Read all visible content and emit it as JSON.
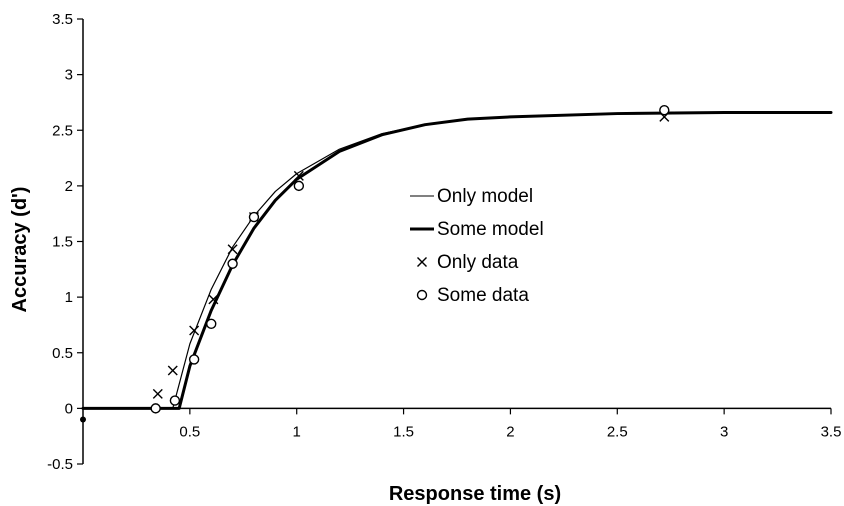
{
  "chart_data": {
    "type": "line",
    "title": "",
    "xlabel": "Response time (s)",
    "ylabel": "Accuracy (d')",
    "xlim": [
      0,
      3.5
    ],
    "ylim": [
      -0.5,
      3.5
    ],
    "x_ticks": [
      0.5,
      1,
      1.5,
      2,
      2.5,
      3,
      3.5
    ],
    "x_tick_labels": [
      "0.5",
      "1",
      "1.5",
      "2",
      "2.5",
      "3",
      "3.5"
    ],
    "y_ticks": [
      -0.5,
      0,
      0.5,
      1,
      1.5,
      2,
      2.5,
      3,
      3.5
    ],
    "y_tick_labels": [
      "-0.5",
      "0",
      "0.5",
      "1",
      "1.5",
      "2",
      "2.5",
      "3",
      "3.5"
    ],
    "grid": false,
    "legend_position": "center-right",
    "series": [
      {
        "name": "Only model",
        "kind": "line",
        "style": "thin",
        "x": [
          0,
          0.42,
          0.5,
          0.6,
          0.7,
          0.8,
          0.9,
          1.0,
          1.2,
          1.4,
          1.6,
          1.8,
          2.0,
          2.5,
          3.0,
          3.5
        ],
        "y": [
          0,
          0,
          0.58,
          1.07,
          1.45,
          1.73,
          1.95,
          2.11,
          2.33,
          2.47,
          2.55,
          2.6,
          2.62,
          2.65,
          2.66,
          2.66
        ]
      },
      {
        "name": "Some model",
        "kind": "line",
        "style": "thick",
        "x": [
          0,
          0.45,
          0.5,
          0.6,
          0.7,
          0.8,
          0.9,
          1.0,
          1.2,
          1.4,
          1.6,
          1.8,
          2.0,
          2.5,
          3.0,
          3.5
        ],
        "y": [
          0,
          0,
          0.38,
          0.88,
          1.29,
          1.62,
          1.87,
          2.06,
          2.31,
          2.46,
          2.55,
          2.6,
          2.62,
          2.65,
          2.66,
          2.66
        ]
      },
      {
        "name": "Only data",
        "kind": "scatter",
        "marker": "x",
        "x": [
          0.35,
          0.42,
          0.52,
          0.61,
          0.7,
          0.8,
          1.01,
          2.72
        ],
        "y": [
          0.13,
          0.34,
          0.7,
          0.98,
          1.43,
          1.72,
          2.09,
          2.62
        ]
      },
      {
        "name": "Some data",
        "kind": "scatter",
        "marker": "o",
        "x": [
          0.34,
          0.43,
          0.52,
          0.6,
          0.7,
          0.8,
          1.01,
          2.72
        ],
        "y": [
          0.0,
          0.07,
          0.44,
          0.76,
          1.3,
          1.72,
          2.0,
          2.68
        ]
      }
    ]
  }
}
